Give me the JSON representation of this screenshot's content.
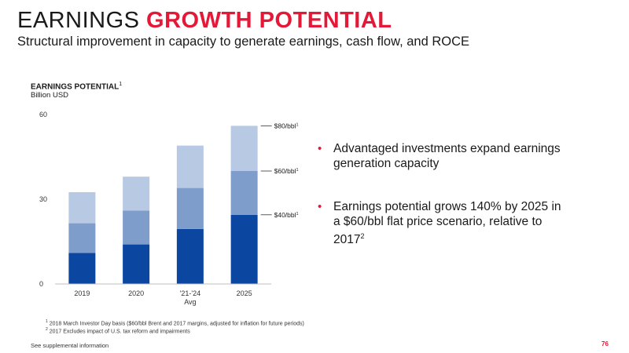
{
  "header": {
    "title_plain": "EARNINGS ",
    "title_accent": "GROWTH POTENTIAL",
    "subtitle": "Structural improvement in capacity to generate earnings, cash flow, and ROCE"
  },
  "colors": {
    "accent": "#e31937",
    "dark_blue": "#0b47a0",
    "mid_blue": "#7f9dcb",
    "light_blue": "#b8c9e3"
  },
  "chart_data": {
    "type": "bar",
    "stacked": true,
    "title": "EARNINGS POTENTIAL",
    "title_footnote": "1",
    "ylabel": "Billion USD",
    "ylim": [
      0,
      60
    ],
    "yticks": [
      "0",
      "30",
      "60"
    ],
    "categories": [
      "2019",
      "2020",
      "'21-'24",
      "2025"
    ],
    "category_sublabels": [
      "",
      "",
      "Avg",
      ""
    ],
    "series": [
      {
        "name": "$40/bbl",
        "footnote": "1",
        "color": "#0b47a0",
        "values": [
          11,
          14,
          19.5,
          24.5
        ]
      },
      {
        "name": "$60/bbl",
        "footnote": "1",
        "color": "#7f9dcb",
        "values": [
          10.5,
          12,
          14.5,
          15.5
        ]
      },
      {
        "name": "$80/bbl",
        "footnote": "1",
        "color": "#b8c9e3",
        "values": [
          11,
          12,
          15,
          16
        ]
      }
    ],
    "grid": false,
    "legend": "right, inline labels"
  },
  "bullets": [
    {
      "text": "Advantaged investments expand earnings generation capacity",
      "sup": ""
    },
    {
      "text": "Earnings potential grows 140% by 2025 in a $60/bbl flat price scenario, relative to 2017",
      "sup": "2"
    }
  ],
  "footnotes": [
    {
      "num": "1",
      "text": "2018 March Investor Day basis ($60/bbl Brent and 2017 margins, adjusted for inflation for future periods)"
    },
    {
      "num": "2",
      "text": "2017 Excludes impact of U.S. tax reform and impairments"
    }
  ],
  "footer": {
    "supplemental": "See supplemental information",
    "page_number": "76"
  }
}
